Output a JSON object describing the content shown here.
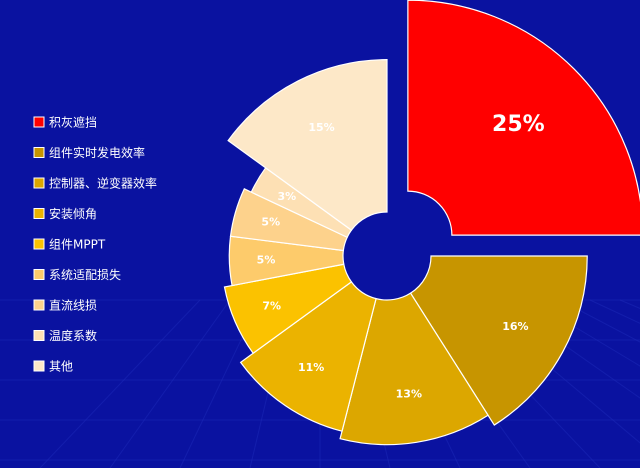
{
  "chart_data": {
    "type": "pie",
    "variant": "rose-donut",
    "title": "",
    "legend_placement": "left",
    "categories": [
      "积灰遮挡",
      "组件实时发电效率",
      "控制器、逆变器效率",
      "安装倾角",
      "组件MPPT",
      "系统适配损失",
      "直流线损",
      "温度系数",
      "其他"
    ],
    "values": [
      25,
      16,
      13,
      11,
      7,
      5,
      5,
      3,
      15
    ],
    "labels": [
      "25%",
      "16%",
      "13%",
      "11%",
      "7%",
      "5%",
      "5%",
      "3%",
      "15%"
    ],
    "colors": [
      "#ff0000",
      "#c79500",
      "#dca700",
      "#ebb300",
      "#fbc200",
      "#fdcb6b",
      "#fdd28c",
      "#fde0b4",
      "#fde8c8"
    ]
  }
}
